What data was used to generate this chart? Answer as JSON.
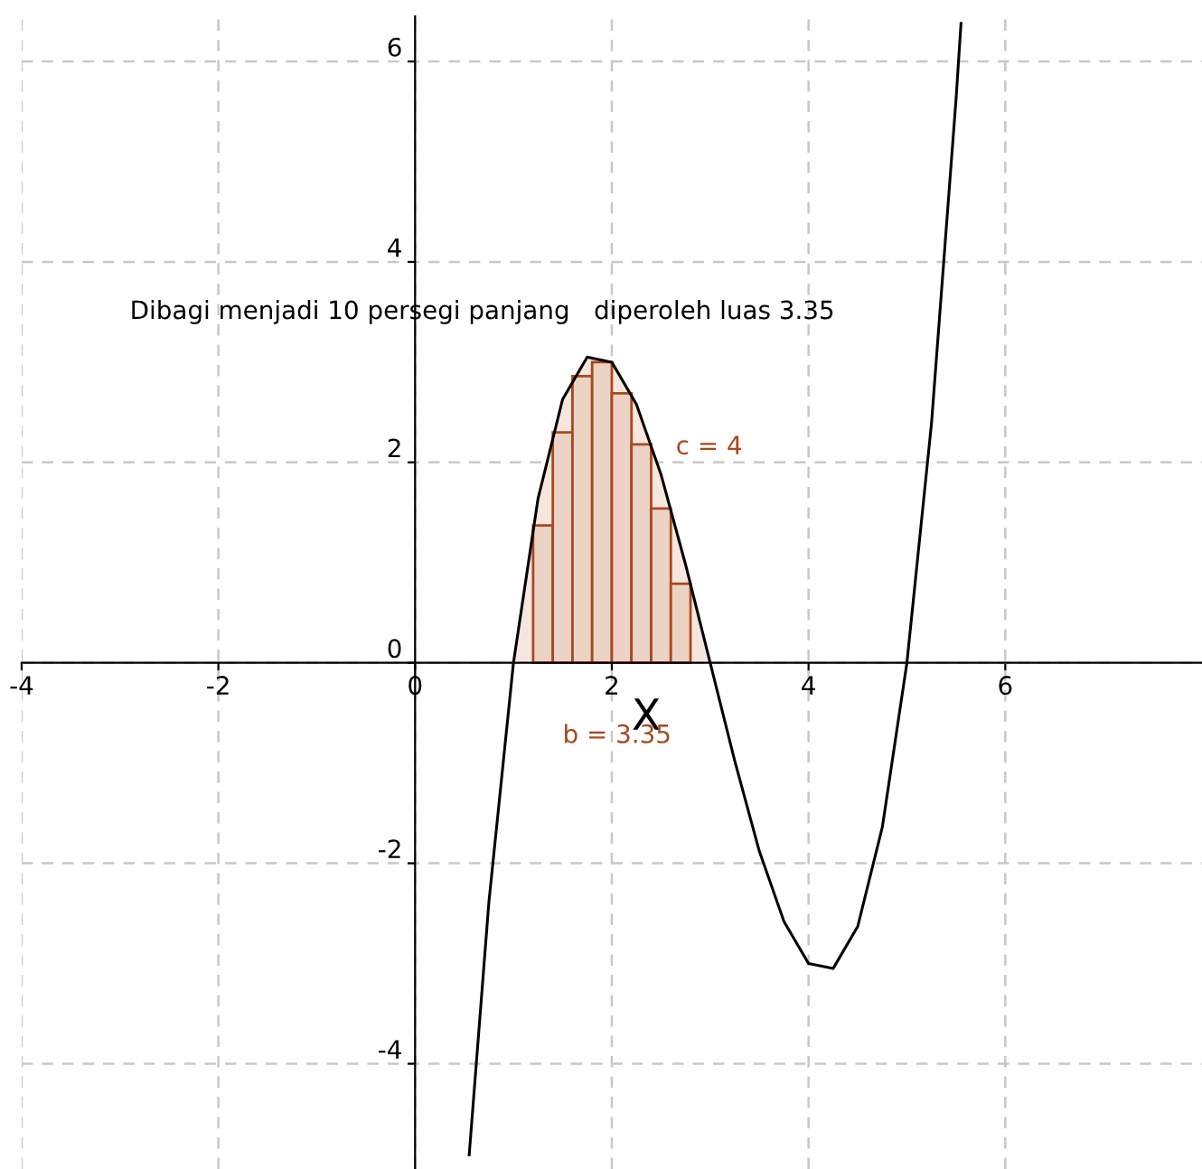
{
  "chart_data": {
    "type": "line",
    "xlabel": "X",
    "annotations": [
      "Dibagi menjadi 10 persegi panjang   diperoleh luas 3.35",
      "c = 4",
      "b = 3.35"
    ],
    "xlim": [
      -4,
      8
    ],
    "ylim": [
      -5.05,
      6.45
    ],
    "xticks": [
      -4,
      -2,
      0,
      2,
      4,
      6
    ],
    "yticks": [
      -4,
      -2,
      0,
      2,
      4,
      6
    ],
    "grid": true,
    "legend": false,
    "marker": "none",
    "line_style": "solid",
    "series": [
      {
        "type": "area",
        "color": "#f6e6de",
        "x": [
          1.0,
          1.25,
          1.5,
          1.75,
          2.0,
          2.25,
          2.5,
          2.75,
          3.0
        ],
        "values": [
          0,
          1.64,
          2.63,
          3.05,
          3,
          2.58,
          1.88,
          0.98,
          0
        ]
      },
      {
        "type": "bar",
        "color": "#ecd3c6",
        "x": [
          1.1,
          1.3,
          1.5,
          1.7,
          1.9,
          2.1,
          2.3,
          2.5,
          2.7,
          2.9
        ],
        "values": [
          0,
          1.37,
          2.3,
          2.86,
          3,
          2.69,
          2.18,
          1.54,
          0.79,
          0
        ]
      },
      {
        "color": "#000000",
        "x": [
          0.55,
          0.75,
          1.0,
          1.25,
          1.5,
          1.75,
          2.0,
          2.25,
          2.5,
          2.75,
          3.0,
          3.25,
          3.5,
          3.75,
          4.0,
          4.25,
          4.5,
          4.75,
          5.0,
          5.25,
          5.5,
          5.55
        ],
        "values": [
          -4.91,
          -2.39,
          0,
          1.64,
          2.63,
          3.05,
          3,
          2.58,
          1.88,
          0.98,
          0,
          -0.98,
          -1.88,
          -2.58,
          -3,
          -3.05,
          -2.63,
          -1.64,
          0,
          2.39,
          5.63,
          6.38
        ]
      }
    ]
  }
}
